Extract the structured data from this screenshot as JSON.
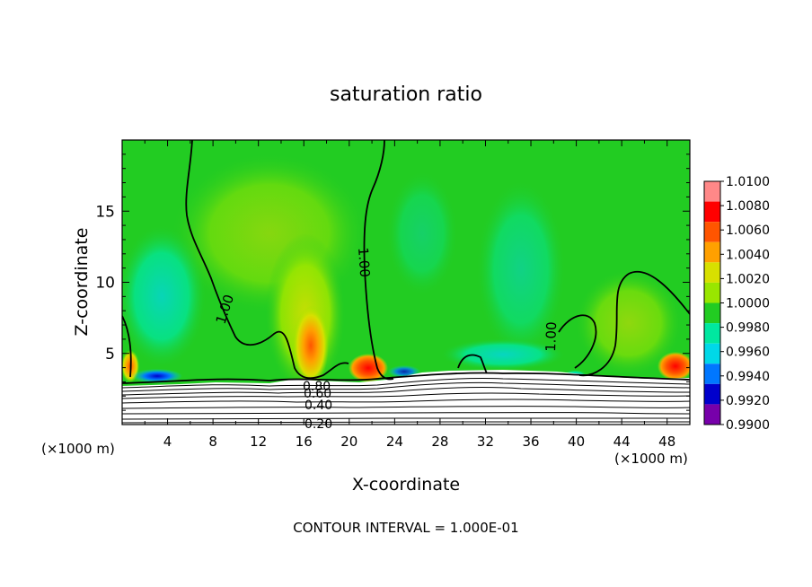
{
  "chart_data": {
    "type": "heatmap",
    "title": "saturation ratio",
    "xlabel": "X-coordinate",
    "ylabel": "Z-coordinate",
    "x_unit_label": "(×1000 m)",
    "footer": "CONTOUR INTERVAL = 1.000E-01",
    "xlim": [
      0,
      50
    ],
    "ylim": [
      0,
      20
    ],
    "x_ticks": [
      4,
      8,
      12,
      16,
      20,
      24,
      28,
      32,
      36,
      40,
      44,
      48
    ],
    "y_ticks": [
      5,
      10,
      15
    ],
    "colorbar": {
      "levels": [
        "1.0100",
        "1.0080",
        "1.0060",
        "1.0040",
        "1.0020",
        "1.0000",
        "0.9980",
        "0.9960",
        "0.9940",
        "0.9920",
        "0.9900"
      ],
      "colors": [
        "#ff8888",
        "#ff0000",
        "#ff5500",
        "#ffa000",
        "#d8e000",
        "#99e600",
        "#22cc22",
        "#00e8a0",
        "#00d8e8",
        "#0077ff",
        "#0000cc",
        "#7700aa"
      ]
    },
    "contour_labels": [
      "1.00",
      "1.00",
      "1.00",
      "0.80",
      "0.60",
      "0.40",
      "0.20"
    ],
    "background_value": 1.0,
    "features": [
      {
        "x": 17,
        "z": 5,
        "value": 1.006
      },
      {
        "x": 21,
        "z": 3.8,
        "value": 1.008
      },
      {
        "x": 49,
        "z": 4.0,
        "value": 1.008
      },
      {
        "x": 3,
        "z": 3.5,
        "value": 0.992
      },
      {
        "x": 25,
        "z": 4,
        "value": 0.994
      }
    ]
  }
}
